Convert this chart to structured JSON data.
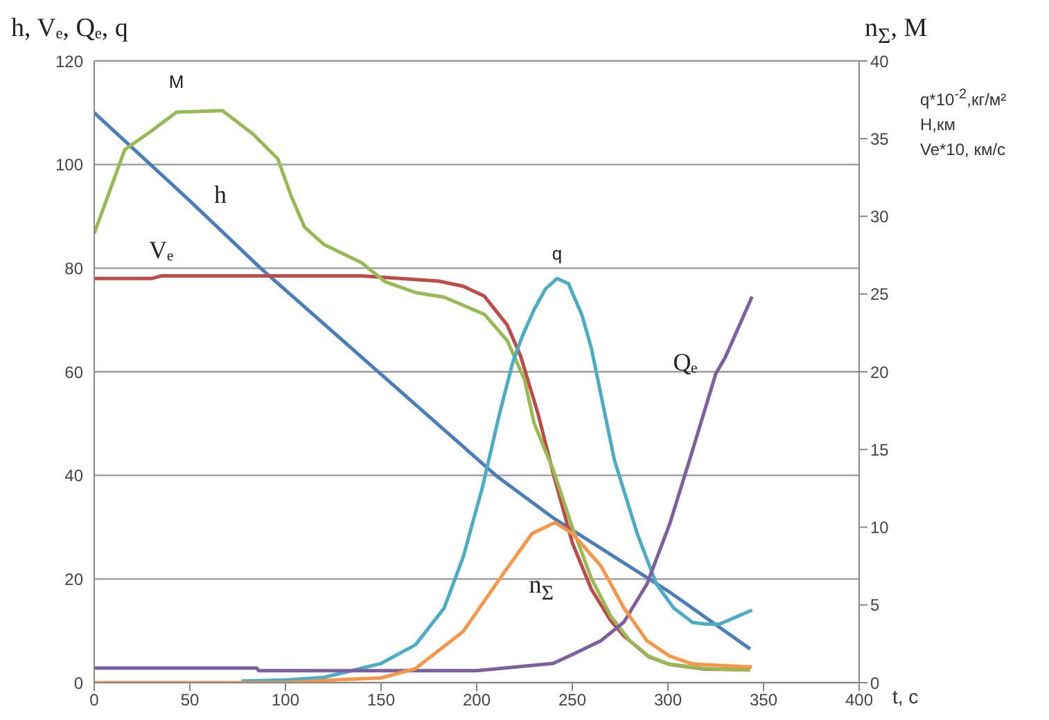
{
  "chart_data": {
    "type": "line",
    "xlabel": "t, c",
    "ylabel": "h, Vₑ, Qₑ, q",
    "y2label": "n$_{Σ}$, M",
    "annotations": [
      "q*10$^{-2}$,кг/м²",
      "Н,км",
      "Ve*10, км/с"
    ],
    "xlim": [
      0,
      400
    ],
    "xticks": [
      0,
      50,
      100,
      150,
      200,
      250,
      300,
      350,
      400
    ],
    "ylim": [
      0,
      120
    ],
    "yticks": [
      0,
      20,
      40,
      60,
      80,
      100,
      120
    ],
    "y2lim": [
      0,
      40
    ],
    "y2ticks": [
      0,
      5,
      10,
      15,
      20,
      25,
      30,
      35,
      40
    ],
    "grid": "y",
    "marker": "none",
    "line_style": "solid",
    "series": [
      {
        "name": "h",
        "color": "#4a7ebb",
        "x": [
          0,
          50,
          87,
          150,
          210,
          240,
          300,
          343
        ],
        "values": [
          110,
          93,
          80,
          59.5,
          40,
          31.8,
          17.7,
          6.5
        ]
      },
      {
        "name": "Vₑ",
        "color": "#be4b48",
        "x": [
          0,
          30,
          35,
          140,
          160,
          180,
          193,
          204,
          216,
          223,
          232,
          240,
          250,
          260,
          270,
          277,
          290,
          301,
          320,
          343
        ],
        "values": [
          78,
          78,
          78.5,
          78.5,
          78,
          77.5,
          76.5,
          74.6,
          69,
          63,
          52,
          40.4,
          27,
          18,
          12,
          9,
          5,
          3.5,
          2.6,
          2.5
        ]
      },
      {
        "name": "M",
        "color": "#98b954",
        "axis": "y2",
        "x": [
          0,
          16,
          30,
          43,
          67,
          83,
          96,
          103,
          110,
          120,
          140,
          152,
          168,
          183,
          204,
          216,
          225,
          230,
          240,
          250,
          260,
          270,
          280,
          290,
          300,
          320,
          343
        ],
        "values": [
          28.9,
          34.3,
          35.5,
          36.7,
          36.8,
          35.3,
          33.7,
          31.3,
          29.3,
          28.2,
          27,
          25.8,
          25.1,
          24.8,
          23.7,
          22,
          19.5,
          16.7,
          13.7,
          10,
          6.7,
          4.3,
          2.7,
          1.7,
          1.2,
          0.9,
          0.8
        ]
      },
      {
        "name": "q",
        "color": "#4bacc6",
        "x": [
          77,
          100,
          120,
          150,
          168,
          183,
          193,
          203,
          212,
          219,
          224,
          230,
          236,
          242,
          248,
          255,
          260,
          272,
          284,
          294,
          303,
          313,
          320,
          327,
          344
        ],
        "values": [
          0.3,
          0.5,
          1,
          3.7,
          7.3,
          14.4,
          24.3,
          37.7,
          52,
          62,
          67,
          72,
          76,
          78,
          77,
          71,
          64.5,
          43,
          28.7,
          19,
          14.4,
          11.6,
          11.3,
          11.3,
          14
        ]
      },
      {
        "name": "Qₑ",
        "color": "#7d5fa0",
        "x": [
          0,
          85,
          86,
          200,
          220,
          240,
          250,
          265,
          277,
          289,
          301,
          313,
          325,
          330,
          344
        ],
        "values": [
          2.8,
          2.8,
          2.3,
          2.3,
          3,
          3.7,
          5.4,
          8.1,
          11.7,
          19,
          30.7,
          45,
          59.6,
          62.8,
          74.5
        ]
      },
      {
        "name": "n$_{Σ}$",
        "color": "#f79646",
        "axis": "y2",
        "x": [
          0,
          100,
          130,
          150,
          168,
          193,
          215,
          229,
          241,
          250,
          265,
          277,
          289,
          301,
          313,
          344
        ],
        "values": [
          0,
          0,
          0.2,
          0.3,
          0.9,
          3.3,
          7.2,
          9.6,
          10.3,
          9.6,
          7.5,
          4.8,
          2.7,
          1.7,
          1.2,
          1
        ]
      }
    ]
  }
}
